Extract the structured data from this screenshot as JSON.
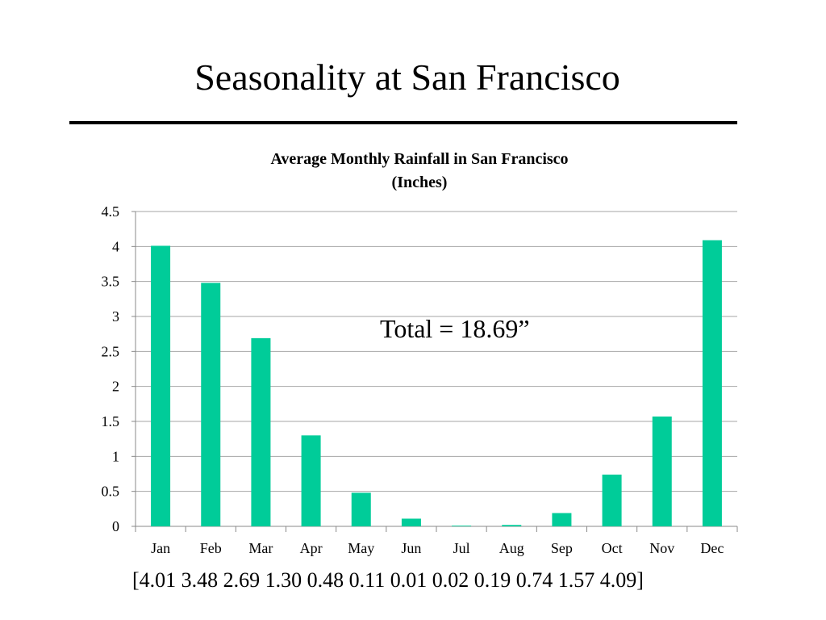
{
  "slide": {
    "title": "Seasonality at San Francisco",
    "note": "Total = 18.69”",
    "values_text": "[4.01 3.48 2.69 1.30 0.48 0.11 0.01 0.02 0.19 0.74 1.57 4.09]"
  },
  "chart_data": {
    "type": "bar",
    "title": "Average Monthly Rainfall in San Francisco (Inches)",
    "title_lines": [
      "Average Monthly Rainfall in San Francisco",
      "(Inches)"
    ],
    "categories": [
      "Jan",
      "Feb",
      "Mar",
      "Apr",
      "May",
      "Jun",
      "Jul",
      "Aug",
      "Sep",
      "Oct",
      "Nov",
      "Dec"
    ],
    "values": [
      4.01,
      3.48,
      2.69,
      1.3,
      0.48,
      0.11,
      0.01,
      0.02,
      0.19,
      0.74,
      1.57,
      4.09
    ],
    "y_ticks": [
      "0",
      "0.5",
      "1",
      "1.5",
      "2",
      "2.5",
      "3",
      "3.5",
      "4",
      "4.5"
    ],
    "ylim": [
      0,
      4.5
    ],
    "grid": true,
    "legend": "none",
    "bar_color": "#00CC99"
  }
}
